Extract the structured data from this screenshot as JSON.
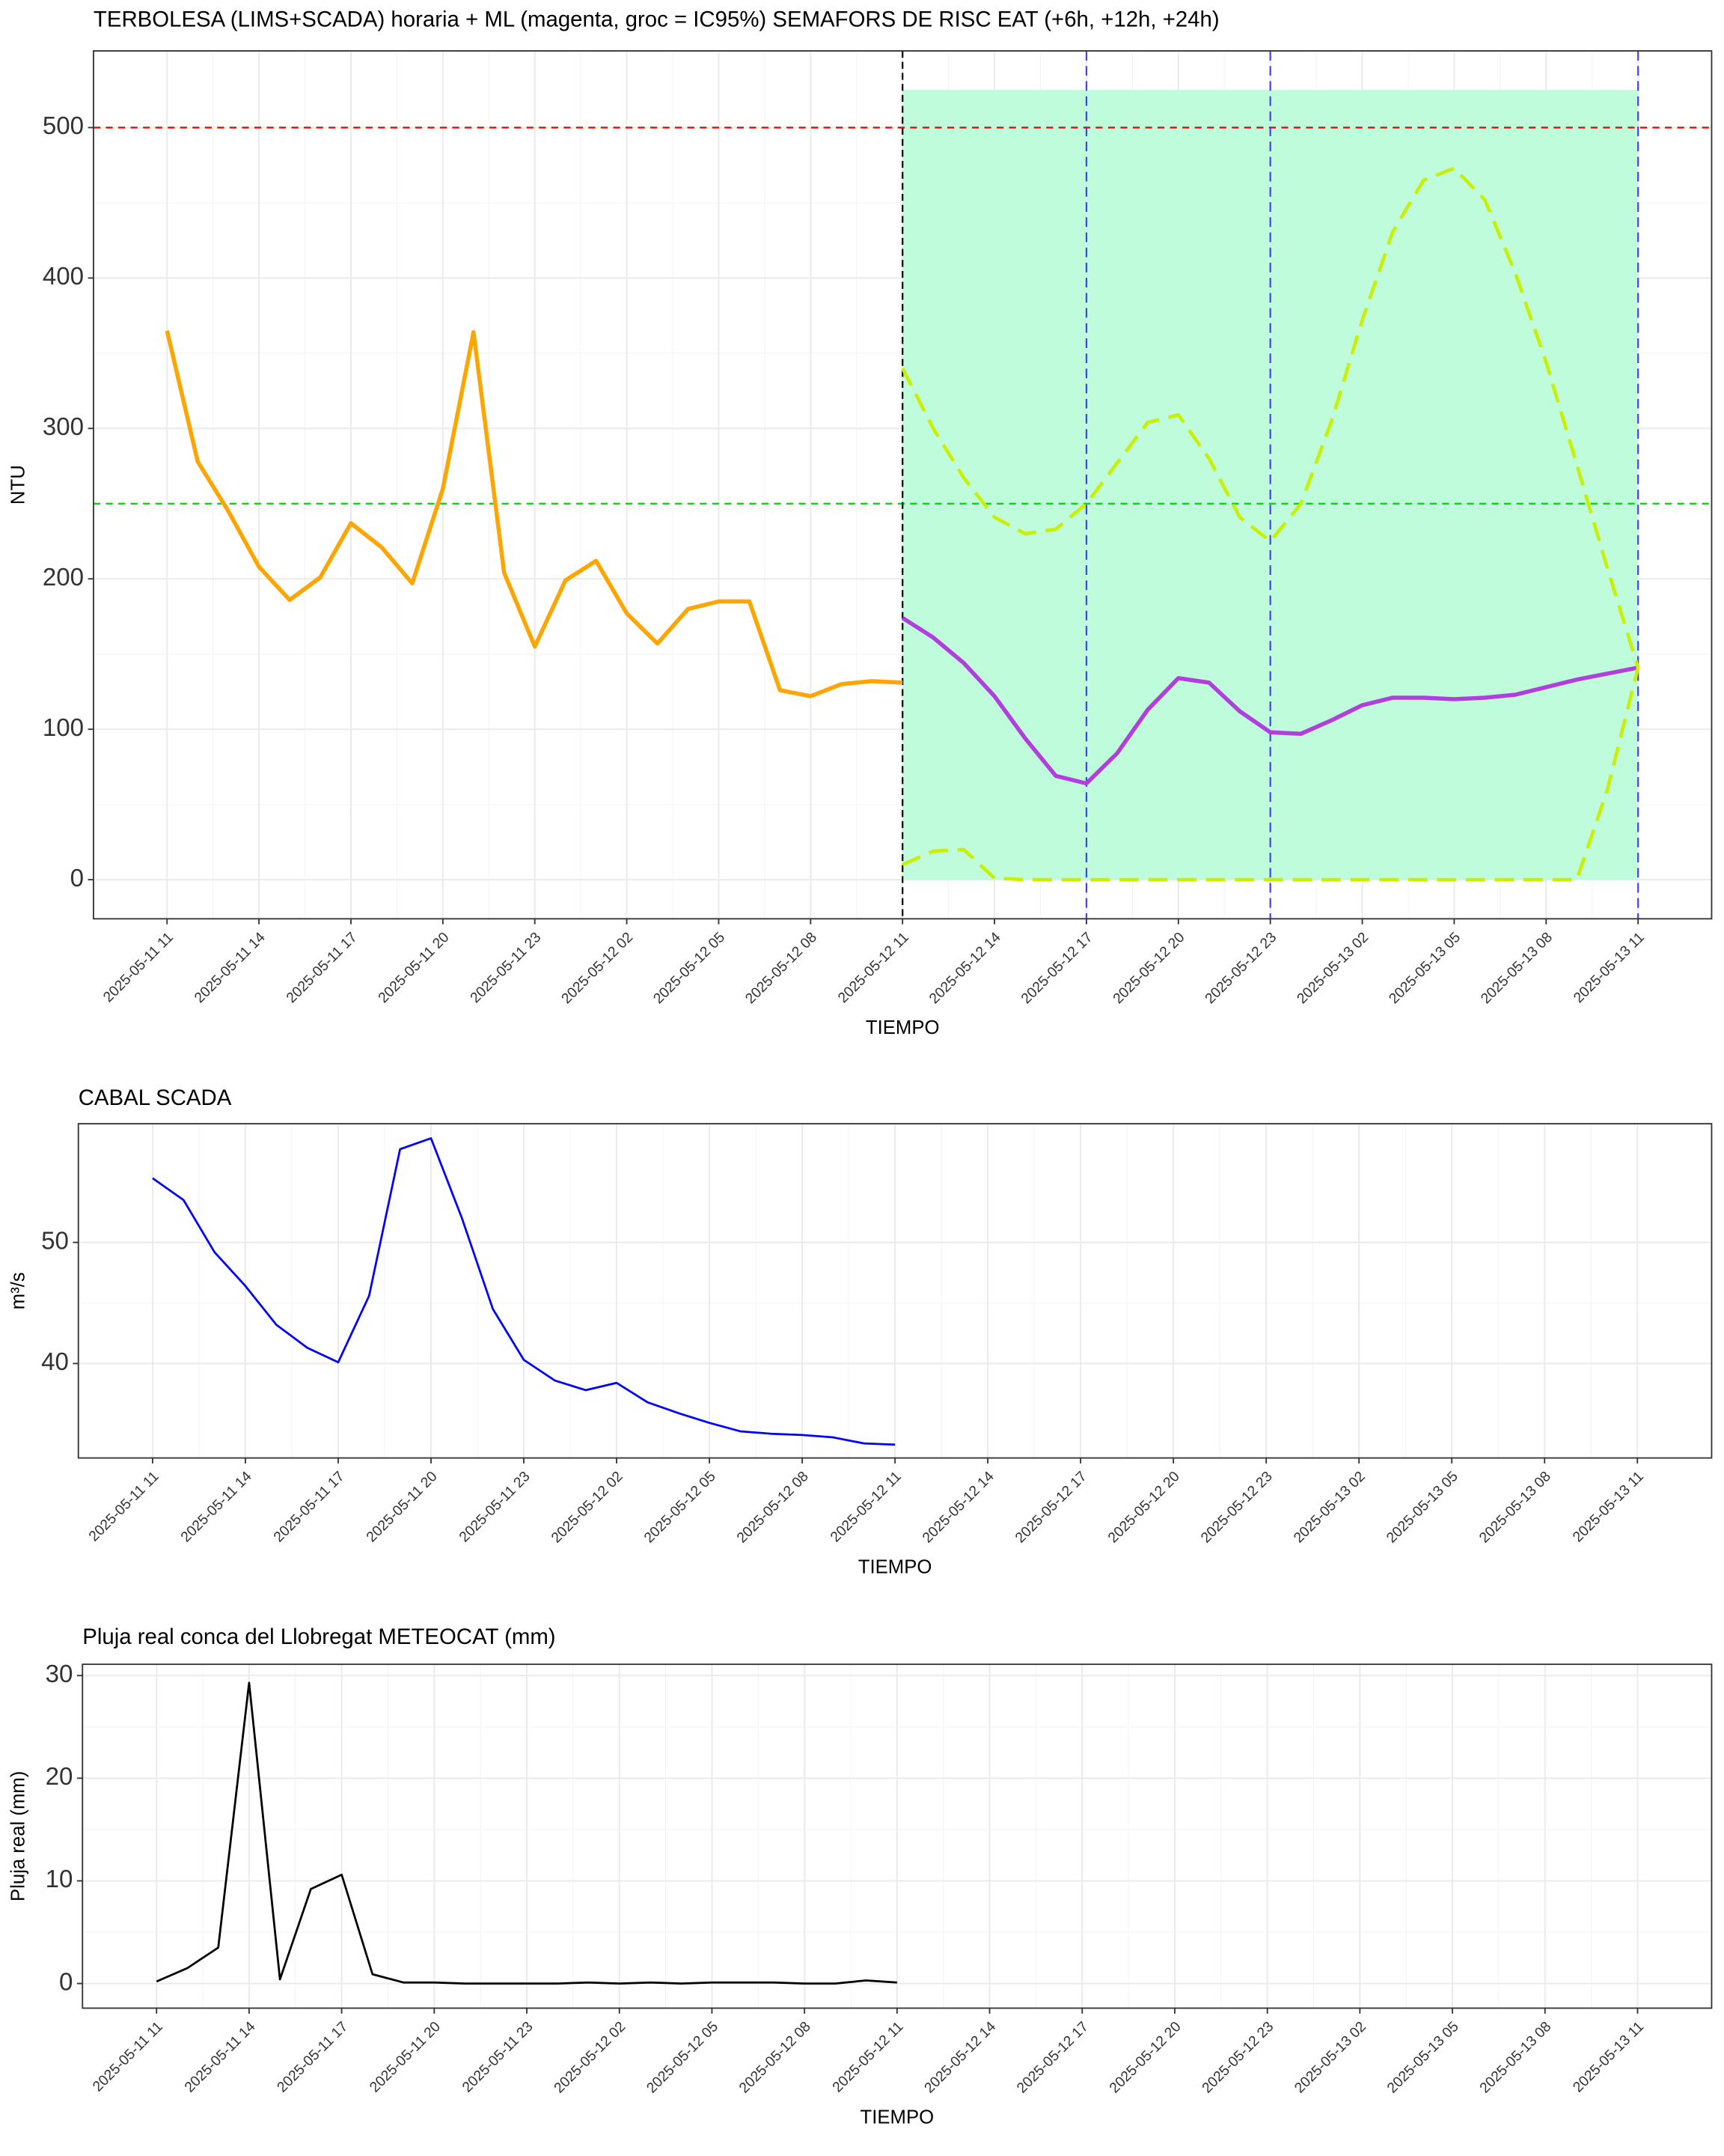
{
  "chart_data": [
    {
      "type": "line",
      "title": "TERBOLESA (LIMS+SCADA) horaria + ML (magenta, groc = IC95%) SEMAFORS DE RISC EAT (+6h, +12h, +24h)",
      "x_label": "TIEMPO",
      "y_label": "NTU",
      "x": [
        "2025-05-11 11",
        "2025-05-11 12",
        "2025-05-11 13",
        "2025-05-11 14",
        "2025-05-11 15",
        "2025-05-11 16",
        "2025-05-11 17",
        "2025-05-11 18",
        "2025-05-11 19",
        "2025-05-11 20",
        "2025-05-11 21",
        "2025-05-11 22",
        "2025-05-11 23",
        "2025-05-12 00",
        "2025-05-12 01",
        "2025-05-12 02",
        "2025-05-12 03",
        "2025-05-12 04",
        "2025-05-12 05",
        "2025-05-12 06",
        "2025-05-12 07",
        "2025-05-12 08",
        "2025-05-12 09",
        "2025-05-12 10",
        "2025-05-12 11",
        "2025-05-12 12",
        "2025-05-12 13",
        "2025-05-12 14",
        "2025-05-12 15",
        "2025-05-12 16",
        "2025-05-12 17",
        "2025-05-12 18",
        "2025-05-12 19",
        "2025-05-12 20",
        "2025-05-12 21",
        "2025-05-12 22",
        "2025-05-12 23",
        "2025-05-13 00",
        "2025-05-13 01",
        "2025-05-13 02",
        "2025-05-13 03",
        "2025-05-13 04",
        "2025-05-13 05",
        "2025-05-13 06",
        "2025-05-13 07",
        "2025-05-13 08",
        "2025-05-13 09",
        "2025-05-13 10",
        "2025-05-13 11"
      ],
      "series": [
        {
          "color": "#ffa500",
          "width": 3,
          "dashed": false,
          "values": [
            365,
            278,
            245,
            208,
            186,
            201,
            237,
            221,
            197,
            260,
            364,
            204,
            155,
            199,
            212,
            177,
            157,
            180,
            185,
            185,
            126,
            122,
            130,
            132,
            131,
            null,
            null,
            null,
            null,
            null,
            null,
            null,
            null,
            null,
            null,
            null,
            null,
            null,
            null,
            null,
            null,
            null,
            null,
            null,
            null,
            null,
            null,
            null,
            null
          ]
        },
        {
          "color": "#b23ee0",
          "width": 3,
          "dashed": false,
          "values": [
            null,
            null,
            null,
            null,
            null,
            null,
            null,
            null,
            null,
            null,
            null,
            null,
            null,
            null,
            null,
            null,
            null,
            null,
            null,
            null,
            null,
            null,
            null,
            null,
            174,
            161,
            144,
            122,
            94,
            69,
            64,
            84,
            113,
            134,
            131,
            112,
            98,
            97,
            106,
            116,
            121,
            121,
            120,
            121,
            123,
            128,
            133,
            137,
            141
          ]
        },
        {
          "color": "#c8f000",
          "width": 2.5,
          "dashed": true,
          "values": [
            null,
            null,
            null,
            null,
            null,
            null,
            null,
            null,
            null,
            null,
            null,
            null,
            null,
            null,
            null,
            null,
            null,
            null,
            null,
            null,
            null,
            null,
            null,
            null,
            340,
            300,
            267,
            241,
            230,
            233,
            250,
            277,
            304,
            309,
            280,
            241,
            225,
            250,
            305,
            372,
            431,
            465,
            473,
            452,
            403,
            344,
            276,
            207,
            141
          ]
        },
        {
          "color": "#c8f000",
          "width": 2.5,
          "dashed": true,
          "values": [
            null,
            null,
            null,
            null,
            null,
            null,
            null,
            null,
            null,
            null,
            null,
            null,
            null,
            null,
            null,
            null,
            null,
            null,
            null,
            null,
            null,
            null,
            null,
            null,
            10,
            19,
            20,
            1,
            0,
            0,
            0,
            0,
            0,
            0,
            0,
            0,
            0,
            0,
            0,
            0,
            0,
            0,
            0,
            0,
            0,
            0,
            0,
            60,
            141
          ]
        }
      ],
      "shaded_region": {
        "x": [
          "2025-05-12 11",
          "2025-05-13 11"
        ],
        "y": [
          0,
          525
        ],
        "color": "#bffcdb"
      },
      "hlines": [
        {
          "value": 500,
          "color": "#ff0000"
        },
        {
          "value": 250,
          "color": "#00e000"
        }
      ],
      "vlines": [
        {
          "x": "2025-05-12 11",
          "color": "#000000"
        },
        {
          "x": "2025-05-12 17",
          "color": "#4444ee"
        },
        {
          "x": "2025-05-12 23",
          "color": "#4444ee"
        },
        {
          "x": "2025-05-13 11",
          "color": "#4444ee"
        }
      ],
      "xlim": [
        "2025-05-11 08:36",
        "2025-05-13 13:24"
      ],
      "xticks": [
        "2025-05-11 11",
        "2025-05-11 14",
        "2025-05-11 17",
        "2025-05-11 20",
        "2025-05-11 23",
        "2025-05-12 02",
        "2025-05-12 05",
        "2025-05-12 08",
        "2025-05-12 11",
        "2025-05-12 14",
        "2025-05-12 17",
        "2025-05-12 20",
        "2025-05-12 23",
        "2025-05-13 02",
        "2025-05-13 05",
        "2025-05-13 08",
        "2025-05-13 11"
      ],
      "ylim": [
        -26,
        551
      ],
      "yticks": [
        0,
        100,
        200,
        300,
        400,
        500
      ],
      "grid": true
    },
    {
      "type": "line",
      "title": "CABAL SCADA",
      "x_label": "TIEMPO",
      "y_label": "m³/s",
      "x": [
        "2025-05-11 11",
        "2025-05-11 12",
        "2025-05-11 13",
        "2025-05-11 14",
        "2025-05-11 15",
        "2025-05-11 16",
        "2025-05-11 17",
        "2025-05-11 18",
        "2025-05-11 19",
        "2025-05-11 20",
        "2025-05-11 21",
        "2025-05-11 22",
        "2025-05-11 23",
        "2025-05-12 00",
        "2025-05-12 01",
        "2025-05-12 02",
        "2025-05-12 03",
        "2025-05-12 04",
        "2025-05-12 05",
        "2025-05-12 06",
        "2025-05-12 07",
        "2025-05-12 08",
        "2025-05-12 09",
        "2025-05-12 10",
        "2025-05-12 11"
      ],
      "series": [
        {
          "color": "#0000ff",
          "width": 1.5,
          "dashed": false,
          "values": [
            55.3,
            53.5,
            49.2,
            46.4,
            43.2,
            41.3,
            40.1,
            45.6,
            57.7,
            58.6,
            52.0,
            44.5,
            40.3,
            38.6,
            37.8,
            38.4,
            36.8,
            35.9,
            35.1,
            34.4,
            34.2,
            34.1,
            33.9,
            33.4,
            33.3
          ]
        }
      ],
      "xlim": [
        "2025-05-11 08:36",
        "2025-05-13 13:24"
      ],
      "xticks": [
        "2025-05-11 11",
        "2025-05-11 14",
        "2025-05-11 17",
        "2025-05-11 20",
        "2025-05-11 23",
        "2025-05-12 02",
        "2025-05-12 05",
        "2025-05-12 08",
        "2025-05-12 11",
        "2025-05-12 14",
        "2025-05-12 17",
        "2025-05-12 20",
        "2025-05-12 23",
        "2025-05-13 02",
        "2025-05-13 05",
        "2025-05-13 08",
        "2025-05-13 11"
      ],
      "ylim": [
        32.2,
        59.8
      ],
      "yticks": [
        40,
        50
      ],
      "grid": true
    },
    {
      "type": "line",
      "title": "Pluja real conca del Llobregat METEOCAT (mm)",
      "x_label": "TIEMPO",
      "y_label": "Pluja real (mm)",
      "x": [
        "2025-05-11 11",
        "2025-05-11 12",
        "2025-05-11 13",
        "2025-05-11 14",
        "2025-05-11 15",
        "2025-05-11 16",
        "2025-05-11 17",
        "2025-05-11 18",
        "2025-05-11 19",
        "2025-05-11 20",
        "2025-05-11 21",
        "2025-05-11 22",
        "2025-05-11 23",
        "2025-05-12 00",
        "2025-05-12 01",
        "2025-05-12 02",
        "2025-05-12 03",
        "2025-05-12 04",
        "2025-05-12 05",
        "2025-05-12 06",
        "2025-05-12 07",
        "2025-05-12 08",
        "2025-05-12 09",
        "2025-05-12 10",
        "2025-05-12 11"
      ],
      "series": [
        {
          "color": "#000000",
          "width": 1.5,
          "dashed": false,
          "values": [
            0.2,
            1.5,
            3.5,
            29.3,
            0.4,
            9.2,
            10.6,
            0.9,
            0.1,
            0.1,
            0,
            0,
            0,
            0,
            0.1,
            0,
            0.1,
            0,
            0.1,
            0.1,
            0.1,
            0,
            0,
            0.3,
            0.1
          ]
        }
      ],
      "xlim": [
        "2025-05-11 08:36",
        "2025-05-13 13:24"
      ],
      "xticks": [
        "2025-05-11 11",
        "2025-05-11 14",
        "2025-05-11 17",
        "2025-05-11 20",
        "2025-05-11 23",
        "2025-05-12 02",
        "2025-05-12 05",
        "2025-05-12 08",
        "2025-05-12 11",
        "2025-05-12 14",
        "2025-05-12 17",
        "2025-05-12 20",
        "2025-05-12 23",
        "2025-05-13 02",
        "2025-05-13 05",
        "2025-05-13 08",
        "2025-05-13 11"
      ],
      "ylim": [
        -2.4,
        31.1
      ],
      "yticks": [
        0,
        10,
        20,
        30
      ],
      "grid": true
    }
  ]
}
